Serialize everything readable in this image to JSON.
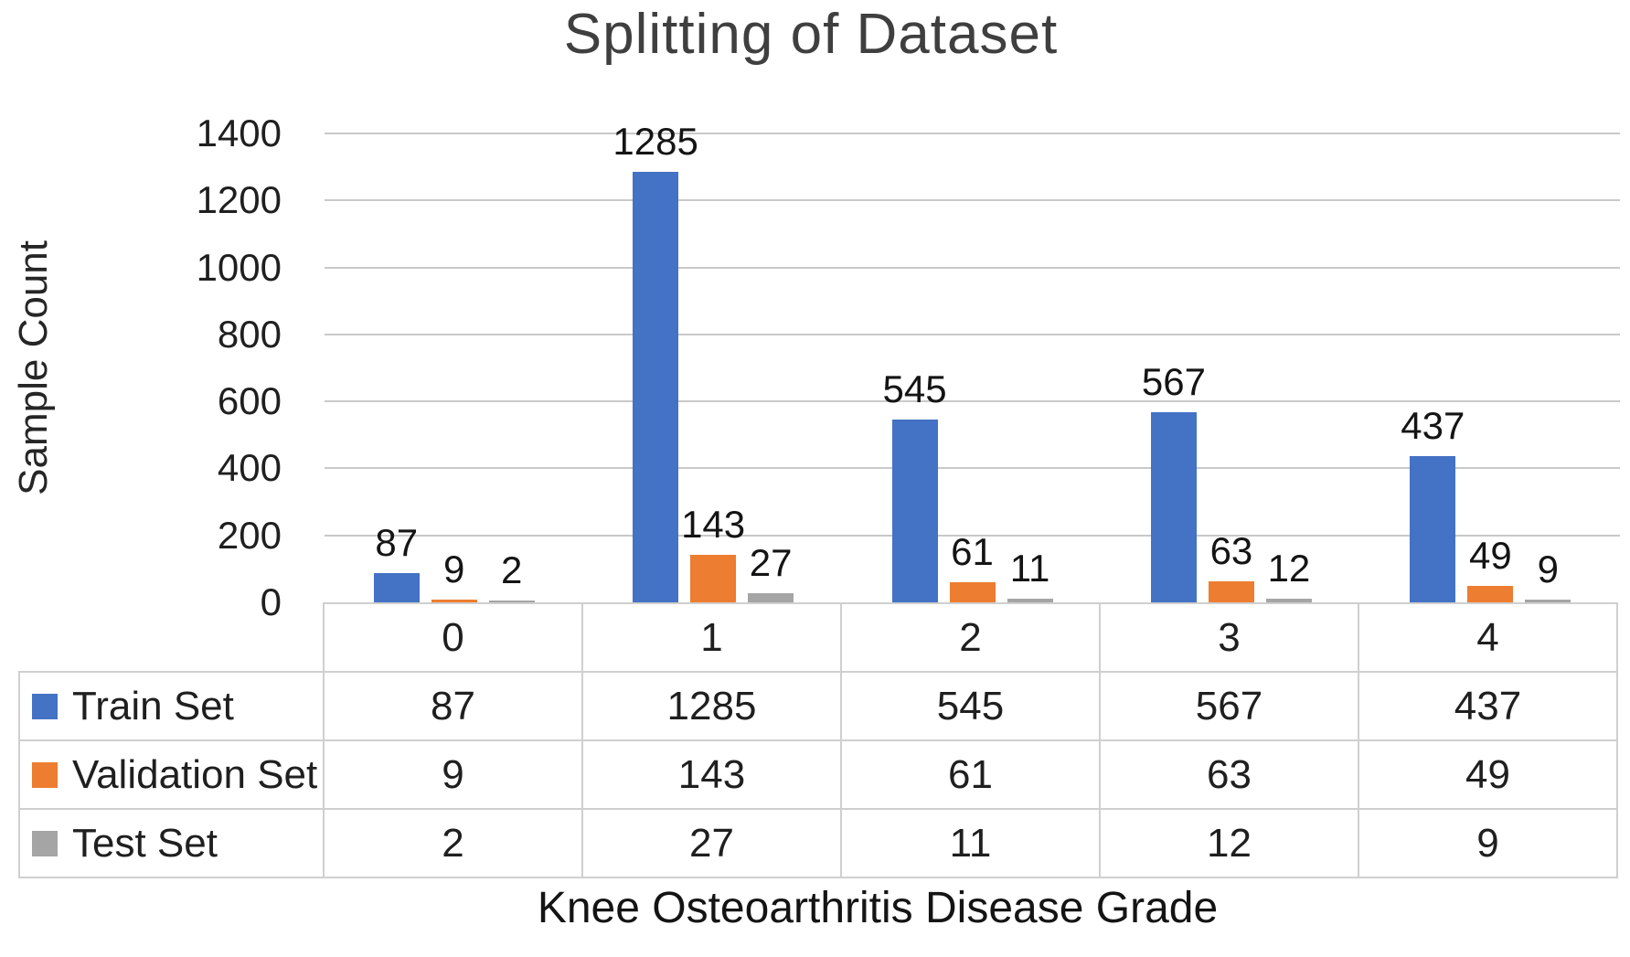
{
  "chart_data": {
    "type": "bar",
    "title": "Splitting of Dataset",
    "xlabel": "Knee Osteoarthritis Disease Grade",
    "ylabel": "Sample Count",
    "categories": [
      "0",
      "1",
      "2",
      "3",
      "4"
    ],
    "series": [
      {
        "name": "Train Set",
        "color": "#4472C4",
        "values": [
          87,
          1285,
          545,
          567,
          437
        ]
      },
      {
        "name": "Validation Set",
        "color": "#ED7D31",
        "values": [
          9,
          143,
          61,
          63,
          49
        ]
      },
      {
        "name": "Test Set",
        "color": "#A5A5A5",
        "values": [
          2,
          27,
          11,
          12,
          9
        ]
      }
    ],
    "ylim": [
      0,
      1400
    ],
    "yticks": [
      0,
      200,
      400,
      600,
      800,
      1000,
      1200,
      1400
    ],
    "grid": true,
    "data_labels": true,
    "legend_position": "table-left",
    "table_shown": true
  },
  "colors": {
    "grid": "#C9C9C9",
    "table_border": "#CFCFCF",
    "title_text": "#3F3F3F",
    "body_text": "#1F1F1F"
  }
}
